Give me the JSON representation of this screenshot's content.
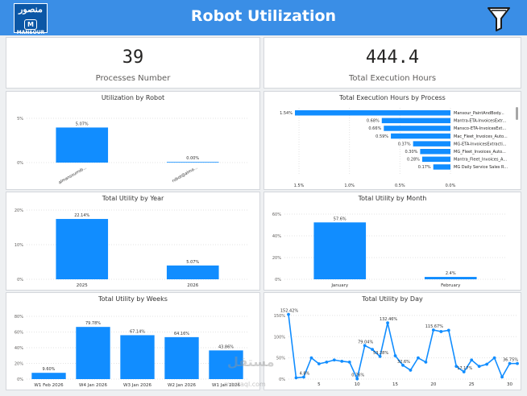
{
  "header": {
    "title": "Robot Utilization",
    "logo_ar": "منصور",
    "logo_mark": "M",
    "logo_en": "MANSOUR"
  },
  "kpis": [
    {
      "value": "39",
      "label": "Processes Number"
    },
    {
      "value": "444.4",
      "label": "Total Execution Hours"
    }
  ],
  "colors": {
    "accent": "#118dff",
    "header": "#3a8ee6"
  },
  "icons": {
    "filter": "filter-icon"
  },
  "watermark": {
    "main": "مستقل",
    "sub": "mostaql.com"
  },
  "chart_data": [
    {
      "id": "util_robot",
      "type": "bar",
      "title": "Utilization by Robot",
      "categories": [
        "almansourrob...",
        "robot@alma..."
      ],
      "values": [
        5.07,
        0.0
      ],
      "labels": [
        "5.07%",
        "0.00%"
      ],
      "yticks": [
        "5%",
        "0%"
      ],
      "ylim": [
        0,
        6.4
      ]
    },
    {
      "id": "exec_process",
      "type": "bar",
      "orientation": "horizontal",
      "title": "Total Execution Hours by Process",
      "categories": [
        "Mansour_PaintAndBody...",
        "Mantra-ETA-InvoicesExtr...",
        "Mansco-ETA-InvoicesExt...",
        "Mac_Fleet_Invoices_Auto...",
        "MG-ETA-InvoicesExtracti...",
        "MG_Fleet_Invoices_Auto...",
        "Mantra_Fleet_Invoices_A...",
        "MG Daily Service Sales R..."
      ],
      "values": [
        1.54,
        0.68,
        0.66,
        0.59,
        0.37,
        0.3,
        0.28,
        0.17
      ],
      "labels": [
        "1.54%",
        "0.68%",
        "0.66%",
        "0.59%",
        "0.37%",
        "0.30%",
        "0.28%",
        "0.17%"
      ],
      "xticks": [
        "1.5%",
        "1.0%",
        "0.5%",
        "0.0%"
      ],
      "xlim": [
        1.58,
        0
      ]
    },
    {
      "id": "util_year",
      "type": "bar",
      "title": "Total Utility by Year",
      "categories": [
        "2025",
        "2026"
      ],
      "values": [
        22.14,
        5.07
      ],
      "labels": [
        "22.14%",
        "5.07%"
      ],
      "yticks": [
        "20%",
        "10%",
        "0%"
      ],
      "ylim": [
        0,
        25.4
      ]
    },
    {
      "id": "util_month",
      "type": "bar",
      "title": "Total Utility by Month",
      "categories": [
        "January",
        "February"
      ],
      "values": [
        57.6,
        2.4
      ],
      "labels": [
        "57.6%",
        "2.4%"
      ],
      "yticks": [
        "60%",
        "40%",
        "20%",
        "0%"
      ],
      "ylim": [
        0,
        66
      ]
    },
    {
      "id": "util_weeks",
      "type": "bar",
      "title": "Total Utility by Weeks",
      "categories": [
        "W1 Feb 2026",
        "W4 Jan 2026",
        "W3 Jan 2026",
        "W2 Jan 2026",
        "W1 Jan 2026"
      ],
      "values": [
        9.6,
        79.78,
        67.14,
        64.16,
        43.86
      ],
      "labels": [
        "9.60%",
        "79.78%",
        "67.14%",
        "64.16%",
        "43.86%"
      ],
      "yticks": [
        "80%",
        "60%",
        "40%",
        "20%",
        "0%"
      ],
      "ylim": [
        0,
        96
      ]
    },
    {
      "id": "util_day",
      "type": "line",
      "title": "Total Utility by Day",
      "x": [
        1,
        2,
        3,
        4,
        5,
        6,
        7,
        8,
        9,
        10,
        11,
        12,
        13,
        14,
        15,
        16,
        17,
        18,
        19,
        20,
        21,
        22,
        23,
        24,
        25,
        26,
        27,
        28,
        29,
        30,
        31
      ],
      "values": [
        152.42,
        3,
        4.8,
        50,
        36,
        40,
        45,
        42,
        40,
        0.76,
        79.04,
        70,
        53.28,
        132.46,
        55,
        32.6,
        21,
        50,
        40,
        115.67,
        112,
        115,
        30,
        17.17,
        45,
        30,
        35,
        50,
        5,
        36.75,
        36.75
      ],
      "labels": [
        {
          "x": 1,
          "text": "152.42%"
        },
        {
          "x": 3,
          "text": "4.8%"
        },
        {
          "x": 10,
          "text": "0.76%"
        },
        {
          "x": 11,
          "text": "79.04%"
        },
        {
          "x": 13,
          "text": "53.28%"
        },
        {
          "x": 14,
          "text": "132.46%"
        },
        {
          "x": 16,
          "text": "32.6%"
        },
        {
          "x": 20,
          "text": "115.67%"
        },
        {
          "x": 24,
          "text": "17.17%"
        },
        {
          "x": 30,
          "text": "36.75%"
        }
      ],
      "yticks": [
        "150%",
        "100%",
        "50%",
        "0%"
      ],
      "xticks": [
        "5",
        "10",
        "15",
        "20",
        "25",
        "30"
      ],
      "ylim": [
        0,
        165
      ]
    }
  ]
}
